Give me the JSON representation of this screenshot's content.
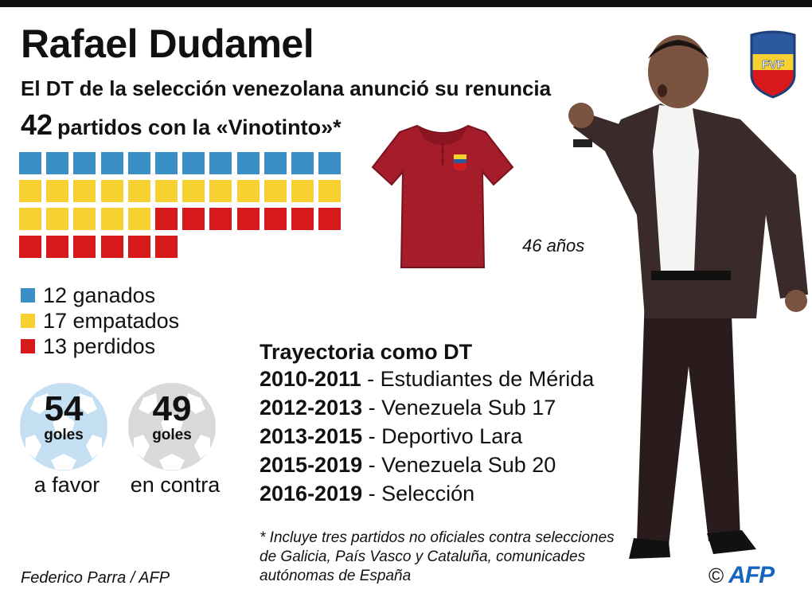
{
  "header": {
    "title": "Rafael Dudamel",
    "subtitle": "El DT de la selección venezolana anunció su renuncia",
    "matches_count": "42",
    "matches_label": "partidos con la «Vinotinto»*"
  },
  "results": {
    "counts": {
      "won": 12,
      "drawn": 17,
      "lost": 13
    },
    "colors": {
      "won": "#3a8fc4",
      "drawn": "#f7d031",
      "lost": "#d7191c"
    },
    "legend": [
      {
        "label": "12 ganados"
      },
      {
        "label": "17 empatados"
      },
      {
        "label": "13 perdidos"
      }
    ]
  },
  "goals": {
    "for": {
      "number": "54",
      "unit": "goles",
      "caption": "a favor"
    },
    "against": {
      "number": "49",
      "unit": "goles",
      "caption": "en contra"
    }
  },
  "profile": {
    "age": "46 años"
  },
  "career": {
    "title": "Trayectoria como DT",
    "items": [
      {
        "years": "2010-2011",
        "team": " - Estudiantes de Mérida"
      },
      {
        "years": "2012-2013",
        "team": " - Venezuela Sub 17"
      },
      {
        "years": "2013-2015",
        "team": " - Deportivo Lara"
      },
      {
        "years": "2015-2019",
        "team": " - Venezuela Sub 20"
      },
      {
        "years": "2016-2019",
        "team": " - Selección"
      }
    ]
  },
  "footnote": "* Incluye tres partidos no oficiales contra selecciones de Galicia, País Vasco y Cataluña, comunicades autónomas de España",
  "credit": "Federico Parra / AFP",
  "brand": {
    "copyright": "©",
    "agency": "AFP",
    "federation_logo": "FVF"
  }
}
